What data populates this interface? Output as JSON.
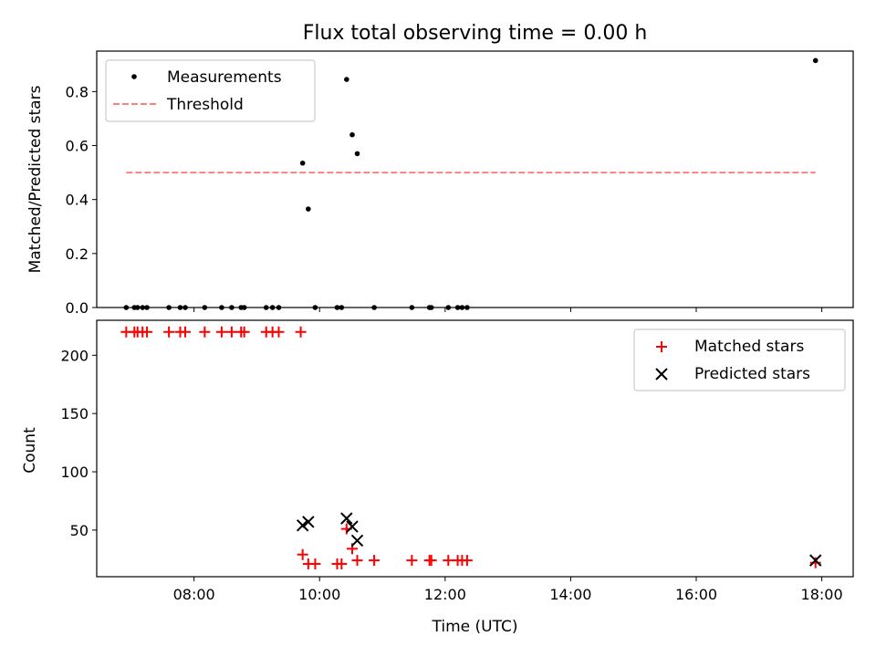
{
  "title": "Flux total observing time = 0.00 h",
  "colors": {
    "measure": "#000000",
    "threshold": "#ff7f7f",
    "matched": "#ff0000",
    "predicted": "#000000",
    "axis": "#000000"
  },
  "chart_data": [
    {
      "type": "scatter",
      "ylabel": "Matched/Predicted stars",
      "xlabel": "",
      "xlim": [
        6.45,
        18.5
      ],
      "ylim": [
        0,
        0.95
      ],
      "xticks": [
        8,
        10,
        12,
        14,
        16,
        18
      ],
      "yticks": [
        0.0,
        0.2,
        0.4,
        0.6,
        0.8
      ],
      "ytick_labels": [
        "0.0",
        "0.2",
        "0.4",
        "0.6",
        "0.8"
      ],
      "legend": {
        "position": "top-left",
        "entries": [
          "Measurements",
          "Threshold"
        ]
      },
      "series": [
        {
          "name": "Measurements",
          "x": [
            6.92,
            7.05,
            7.1,
            7.18,
            7.25,
            7.6,
            7.78,
            7.86,
            8.17,
            8.44,
            8.6,
            8.75,
            8.8,
            9.15,
            9.25,
            9.35,
            9.73,
            9.82,
            9.93,
            10.28,
            10.35,
            10.43,
            10.52,
            10.6,
            10.87,
            11.47,
            11.75,
            11.78,
            12.05,
            12.2,
            12.27,
            12.35,
            17.9
          ],
          "y": [
            0,
            0,
            0,
            0,
            0,
            0,
            0,
            0,
            0,
            0,
            0,
            0,
            0,
            0,
            0,
            0,
            0.535,
            0.365,
            0,
            0,
            0,
            0.845,
            0.64,
            0.57,
            0,
            0,
            0,
            0,
            0,
            0,
            0,
            0,
            0.915
          ]
        },
        {
          "name": "Threshold",
          "x": [
            6.92,
            17.9
          ],
          "y": [
            0.5,
            0.5
          ],
          "style": "dashed"
        }
      ]
    },
    {
      "type": "scatter",
      "ylabel": "Count",
      "xlabel": "Time (UTC)",
      "xlim": [
        6.45,
        18.5
      ],
      "ylim": [
        10,
        230
      ],
      "xticks": [
        8,
        10,
        12,
        14,
        16,
        18
      ],
      "xtick_labels": [
        "08:00",
        "10:00",
        "12:00",
        "14:00",
        "16:00",
        "18:00"
      ],
      "yticks": [
        50,
        100,
        150,
        200
      ],
      "ytick_labels": [
        "50",
        "100",
        "150",
        "200"
      ],
      "legend": {
        "position": "top-right",
        "entries": [
          "Matched stars",
          "Predicted stars"
        ]
      },
      "series": [
        {
          "name": "Matched stars",
          "marker": "plus",
          "x": [
            6.92,
            7.05,
            7.1,
            7.18,
            7.25,
            7.6,
            7.78,
            7.86,
            8.17,
            8.44,
            8.6,
            8.75,
            8.8,
            9.15,
            9.25,
            9.35,
            9.7,
            9.73,
            9.82,
            9.93,
            10.28,
            10.35,
            10.43,
            10.52,
            10.6,
            10.87,
            11.47,
            11.75,
            11.78,
            12.05,
            12.2,
            12.27,
            12.35,
            17.9
          ],
          "y": [
            220,
            220,
            220,
            220,
            220,
            220,
            220,
            220,
            220,
            220,
            220,
            220,
            220,
            220,
            220,
            220,
            220,
            29,
            21,
            21,
            21,
            21,
            51,
            34,
            24,
            24,
            24,
            24,
            24,
            24,
            24,
            24,
            24,
            22
          ]
        },
        {
          "name": "Predicted stars",
          "marker": "x",
          "x": [
            9.73,
            9.82,
            10.43,
            10.52,
            10.6,
            17.9
          ],
          "y": [
            54,
            57,
            60,
            53,
            41,
            24
          ]
        }
      ]
    }
  ]
}
